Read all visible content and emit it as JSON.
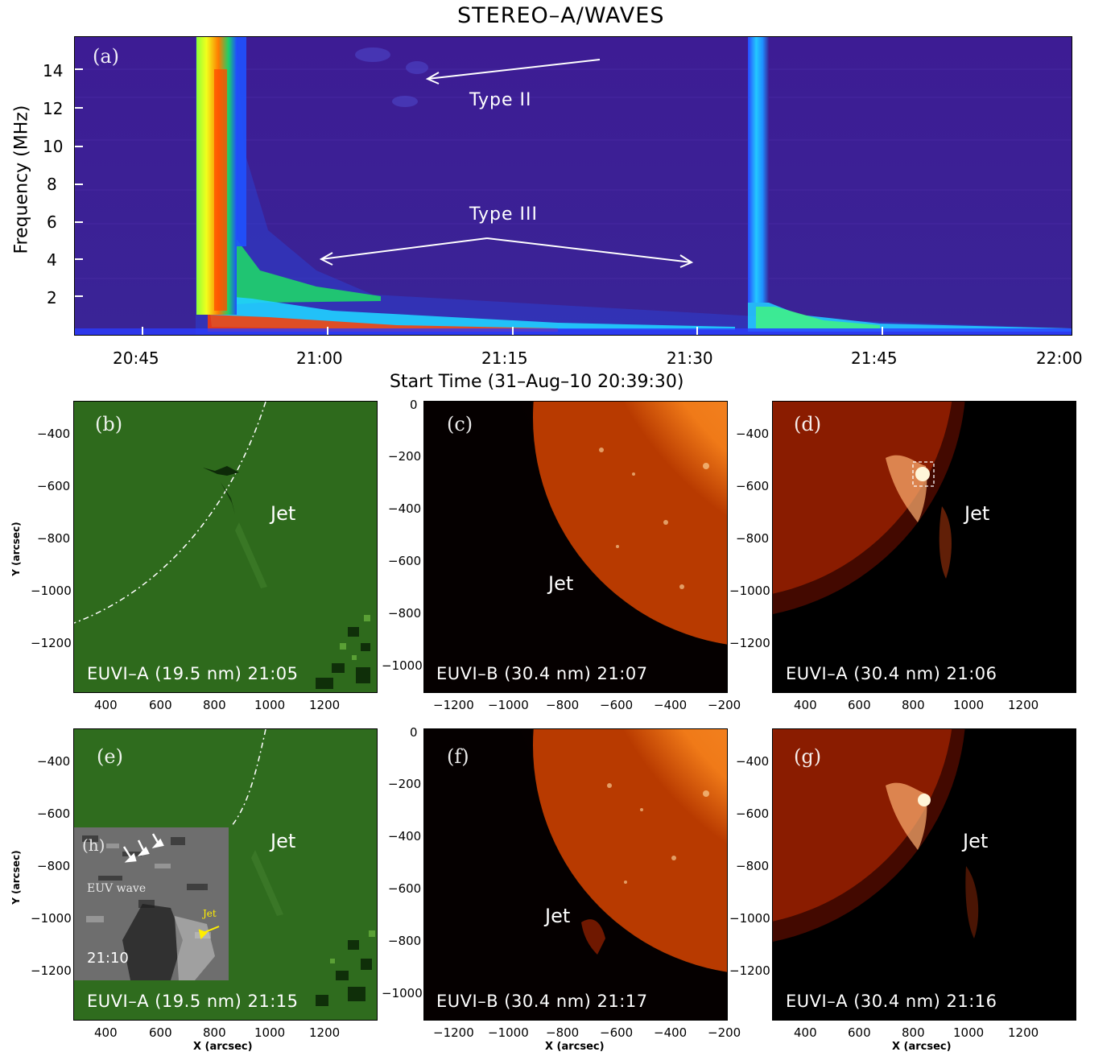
{
  "figure": {
    "title": "STEREO–A/WAVES"
  },
  "panel_a": {
    "label": "(a)",
    "ylabel": "Frequency (MHz)",
    "xlabel": "Start Time (31–Aug–10 20:39:30)",
    "yticks": [
      "2",
      "4",
      "6",
      "8",
      "10",
      "12",
      "14"
    ],
    "xticks": [
      "20:45",
      "21:00",
      "21:15",
      "21:30",
      "21:45",
      "22:00"
    ],
    "annotation_type2": "Type II",
    "annotation_type3": "Type III",
    "colors": {
      "background": "#3a1f8f",
      "burst_core": "#ff2a00",
      "burst_mid": "#f4ff00",
      "burst_outer": "#21b8ff"
    }
  },
  "chart_data": {
    "type": "heatmap",
    "title": "STEREO–A/WAVES",
    "xlabel": "Start Time (31–Aug–10 20:39:30)",
    "ylabel": "Frequency (MHz)",
    "xlim": [
      "20:39:30",
      "22:00"
    ],
    "ylim": [
      0,
      16
    ],
    "features": [
      {
        "name": "Type III",
        "start": "20:50",
        "end": "21:05",
        "freq_top": 16
      },
      {
        "name": "Type III",
        "start": "21:34",
        "end": "21:48",
        "freq_top": 16
      },
      {
        "name": "Type II",
        "start": "21:03",
        "end": "21:10",
        "freq_range": [
          12,
          15
        ]
      }
    ]
  },
  "panels": {
    "b": {
      "label": "(b)",
      "caption": "EUVI–A (19.5 nm) 21:05",
      "jet": "Jet",
      "yticks": [
        "−400",
        "−600",
        "−800",
        "−1000",
        "−1200"
      ],
      "xticks": [
        "400",
        "600",
        "800",
        "1000",
        "1200"
      ]
    },
    "c": {
      "label": "(c)",
      "caption": "EUVI–B (30.4 nm) 21:07",
      "jet": "Jet",
      "yticks": [
        "0",
        "−200",
        "−400",
        "−600",
        "−800",
        "−1000"
      ],
      "xticks": [
        "−1200",
        "−1000",
        "−800",
        "−600",
        "−400",
        "−200"
      ]
    },
    "d": {
      "label": "(d)",
      "caption": "EUVI–A (30.4 nm) 21:06",
      "jet": "Jet",
      "yticks": [
        "−400",
        "−600",
        "−800",
        "−1000",
        "−1200"
      ],
      "xticks": [
        "400",
        "600",
        "800",
        "1000",
        "1200"
      ]
    },
    "e": {
      "label": "(e)",
      "caption": "EUVI–A (19.5 nm) 21:15",
      "jet": "Jet",
      "yticks": [
        "−400",
        "−600",
        "−800",
        "−1000",
        "−1200"
      ],
      "xticks": [
        "400",
        "600",
        "800",
        "1000",
        "1200"
      ]
    },
    "f": {
      "label": "(f)",
      "caption": "EUVI–B (30.4 nm) 21:17",
      "jet": "Jet",
      "yticks": [
        "0",
        "−200",
        "−400",
        "−600",
        "−800",
        "−1000"
      ],
      "xticks": [
        "−1200",
        "−1000",
        "−800",
        "−600",
        "−400",
        "−200"
      ]
    },
    "g": {
      "label": "(g)",
      "caption": "EUVI–A (30.4 nm) 21:16",
      "jet": "Jet",
      "yticks": [
        "−400",
        "−600",
        "−800",
        "−1000",
        "−1200"
      ],
      "xticks": [
        "400",
        "600",
        "800",
        "1000",
        "1200"
      ]
    },
    "h": {
      "label": "(h)",
      "wave": "EUV wave",
      "jet": "Jet",
      "time": "21:10"
    }
  },
  "axes": {
    "y_arcsec": "Y (arcsec)",
    "x_arcsec": "X (arcsec)"
  }
}
